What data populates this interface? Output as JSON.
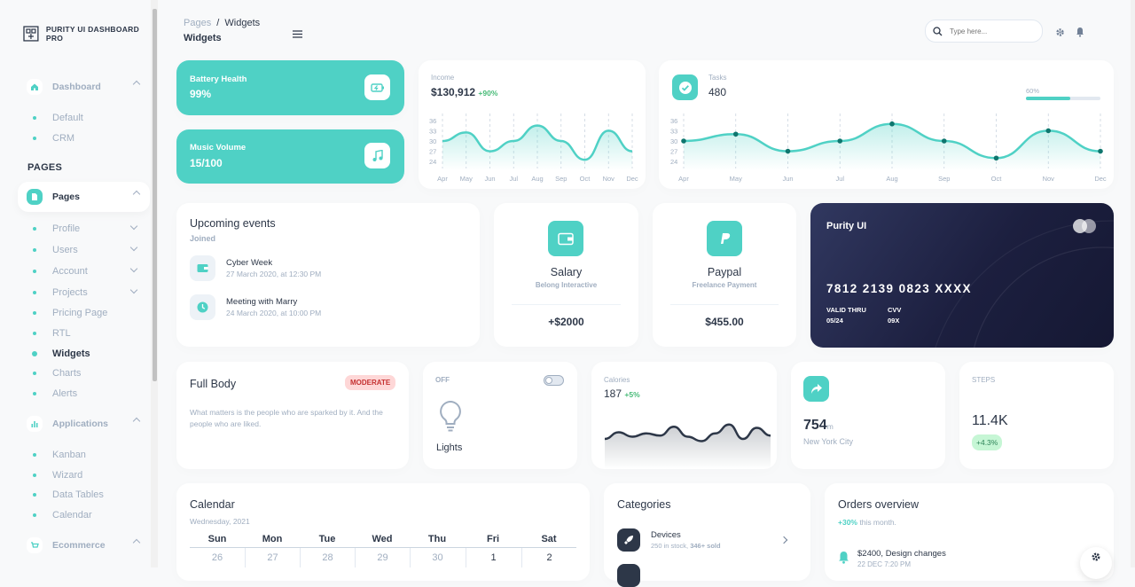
{
  "sidebar": {
    "brand": "PURITY UI DASHBOARD PRO",
    "dashboard": {
      "label": "Dashboard",
      "items": [
        "Default",
        "CRM"
      ]
    },
    "section_title": "PAGES",
    "pages": {
      "label": "Pages",
      "items": [
        "Profile",
        "Users",
        "Account",
        "Projects",
        "Pricing Page",
        "RTL",
        "Widgets",
        "Charts",
        "Alerts"
      ]
    },
    "applications": {
      "label": "Applications",
      "items": [
        "Kanban",
        "Wizard",
        "Data Tables",
        "Calendar"
      ]
    },
    "ecommerce": {
      "label": "Ecommerce"
    }
  },
  "header": {
    "breadcrumb_root": "Pages",
    "breadcrumb_sep": "/",
    "breadcrumb_current": "Widgets",
    "title": "Widgets",
    "search_placeholder": "Type here..."
  },
  "battery": {
    "label": "Battery Health",
    "value": "99%"
  },
  "music": {
    "label": "Music Volume",
    "value": "15/100"
  },
  "income": {
    "label": "Income",
    "value": "$130,912",
    "change": "+90%"
  },
  "tasks": {
    "label": "Tasks",
    "value": "480",
    "progress_label": "60%",
    "progress": 0.6
  },
  "events": {
    "title": "Upcoming events",
    "subtitle": "Joined",
    "items": [
      {
        "title": "Cyber Week",
        "date": "27 March 2020, at 12:30 PM",
        "icon": "wallet-icon"
      },
      {
        "title": "Meeting with Marry",
        "date": "24 March 2020, at 10:00 PM",
        "icon": "clock-icon"
      }
    ]
  },
  "salary": {
    "title": "Salary",
    "subtitle": "Belong Interactive",
    "value": "+$2000"
  },
  "paypal": {
    "title": "Paypal",
    "subtitle": "Freelance Payment",
    "value": "$455.00"
  },
  "credit_card": {
    "brand": "Purity UI",
    "number": "7812 2139 0823 XXXX",
    "valid_label": "VALID THRU",
    "valid": "05/24",
    "cvv_label": "CVV",
    "cvv": "09X"
  },
  "full_body": {
    "title": "Full Body",
    "badge": "MODERATE",
    "text": "What matters is the people who are sparked by it. And the people who are liked."
  },
  "lights": {
    "state": "OFF",
    "label": "Lights"
  },
  "calories": {
    "label": "Calories",
    "value": "187",
    "change": "+5%"
  },
  "location": {
    "value": "754",
    "unit": "m",
    "city": "New York City"
  },
  "steps": {
    "label": "STEPS",
    "value": "11.4K",
    "change": "+4.3%"
  },
  "calendar": {
    "title": "Calendar",
    "subtitle": "Wednesday, 2021",
    "days": [
      "Sun",
      "Mon",
      "Tue",
      "Wed",
      "Thu",
      "Fri",
      "Sat"
    ],
    "dates": [
      "26",
      "27",
      "28",
      "29",
      "30",
      "1",
      "2"
    ]
  },
  "categories": {
    "title": "Categories",
    "item_title": "Devices",
    "item_sub": "250 in stock, ",
    "item_sold": "346+ sold"
  },
  "orders": {
    "title": "Orders overview",
    "change": "+30%",
    "change_text": " this month.",
    "item_title": "$2400, Design changes",
    "item_date": "22 DEC 7:20 PM"
  },
  "chart_data": [
    {
      "type": "area",
      "categories": [
        "Apr",
        "May",
        "Jun",
        "Jul",
        "Aug",
        "Sep",
        "Oct",
        "Nov",
        "Dec"
      ],
      "values": [
        30,
        32.5,
        27,
        30,
        34.5,
        30,
        24.5,
        33,
        27
      ],
      "yticks": [
        36,
        33,
        30,
        27,
        24
      ],
      "ylim": [
        23,
        37
      ]
    },
    {
      "type": "area",
      "categories": [
        "Apr",
        "May",
        "Jun",
        "Jul",
        "Aug",
        "Sep",
        "Oct",
        "Nov",
        "Dec"
      ],
      "values": [
        30,
        32,
        27,
        30,
        35,
        30,
        25,
        33,
        27
      ],
      "yticks": [
        36,
        33,
        30,
        27,
        24
      ],
      "ylim": [
        23,
        37
      ]
    },
    {
      "type": "area",
      "values": [
        20,
        26,
        22,
        25,
        23,
        31,
        22,
        18,
        25,
        33,
        20,
        30,
        23
      ]
    }
  ],
  "colors": {
    "accent": "#4fd1c5",
    "text": "#2d3748",
    "muted": "#a0aec0",
    "card_dark": "#1f2145"
  }
}
